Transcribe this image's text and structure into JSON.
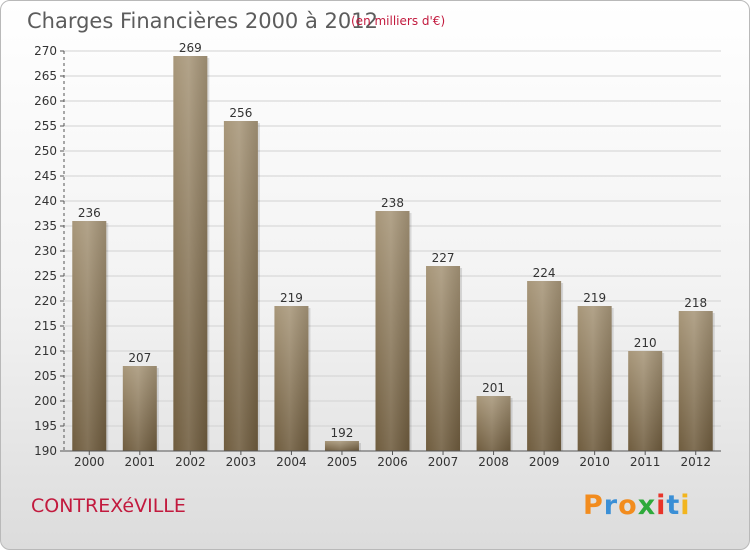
{
  "title": "Charges Financières 2000 à 2012",
  "subtitle": "(en milliers d'€)",
  "commune": "CONTREXéVILLE",
  "logo": {
    "letters": [
      "P",
      "r",
      "o",
      "x",
      "i",
      "t",
      "i"
    ],
    "colors": [
      "#f28c1e",
      "#3a8fd6",
      "#f28c1e",
      "#2eaa3b",
      "#e8342a",
      "#3a8fd6",
      "#f2b51e"
    ]
  },
  "colors": {
    "bar_light": "#a8977a",
    "bar_dark": "#6f5c3e",
    "accent": "#c21a3e"
  },
  "chart_data": {
    "type": "bar",
    "title": "Charges Financières 2000 à 2012",
    "categories": [
      "2000",
      "2001",
      "2002",
      "2003",
      "2004",
      "2005",
      "2006",
      "2007",
      "2008",
      "2009",
      "2010",
      "2011",
      "2012"
    ],
    "values": [
      236,
      207,
      269,
      256,
      219,
      192,
      238,
      227,
      201,
      224,
      219,
      210,
      218
    ],
    "ylim": [
      190,
      270
    ],
    "yticks": [
      190,
      195,
      200,
      205,
      210,
      215,
      220,
      225,
      230,
      235,
      240,
      245,
      250,
      255,
      260,
      265,
      270
    ],
    "grid": true,
    "data_labels": true
  }
}
